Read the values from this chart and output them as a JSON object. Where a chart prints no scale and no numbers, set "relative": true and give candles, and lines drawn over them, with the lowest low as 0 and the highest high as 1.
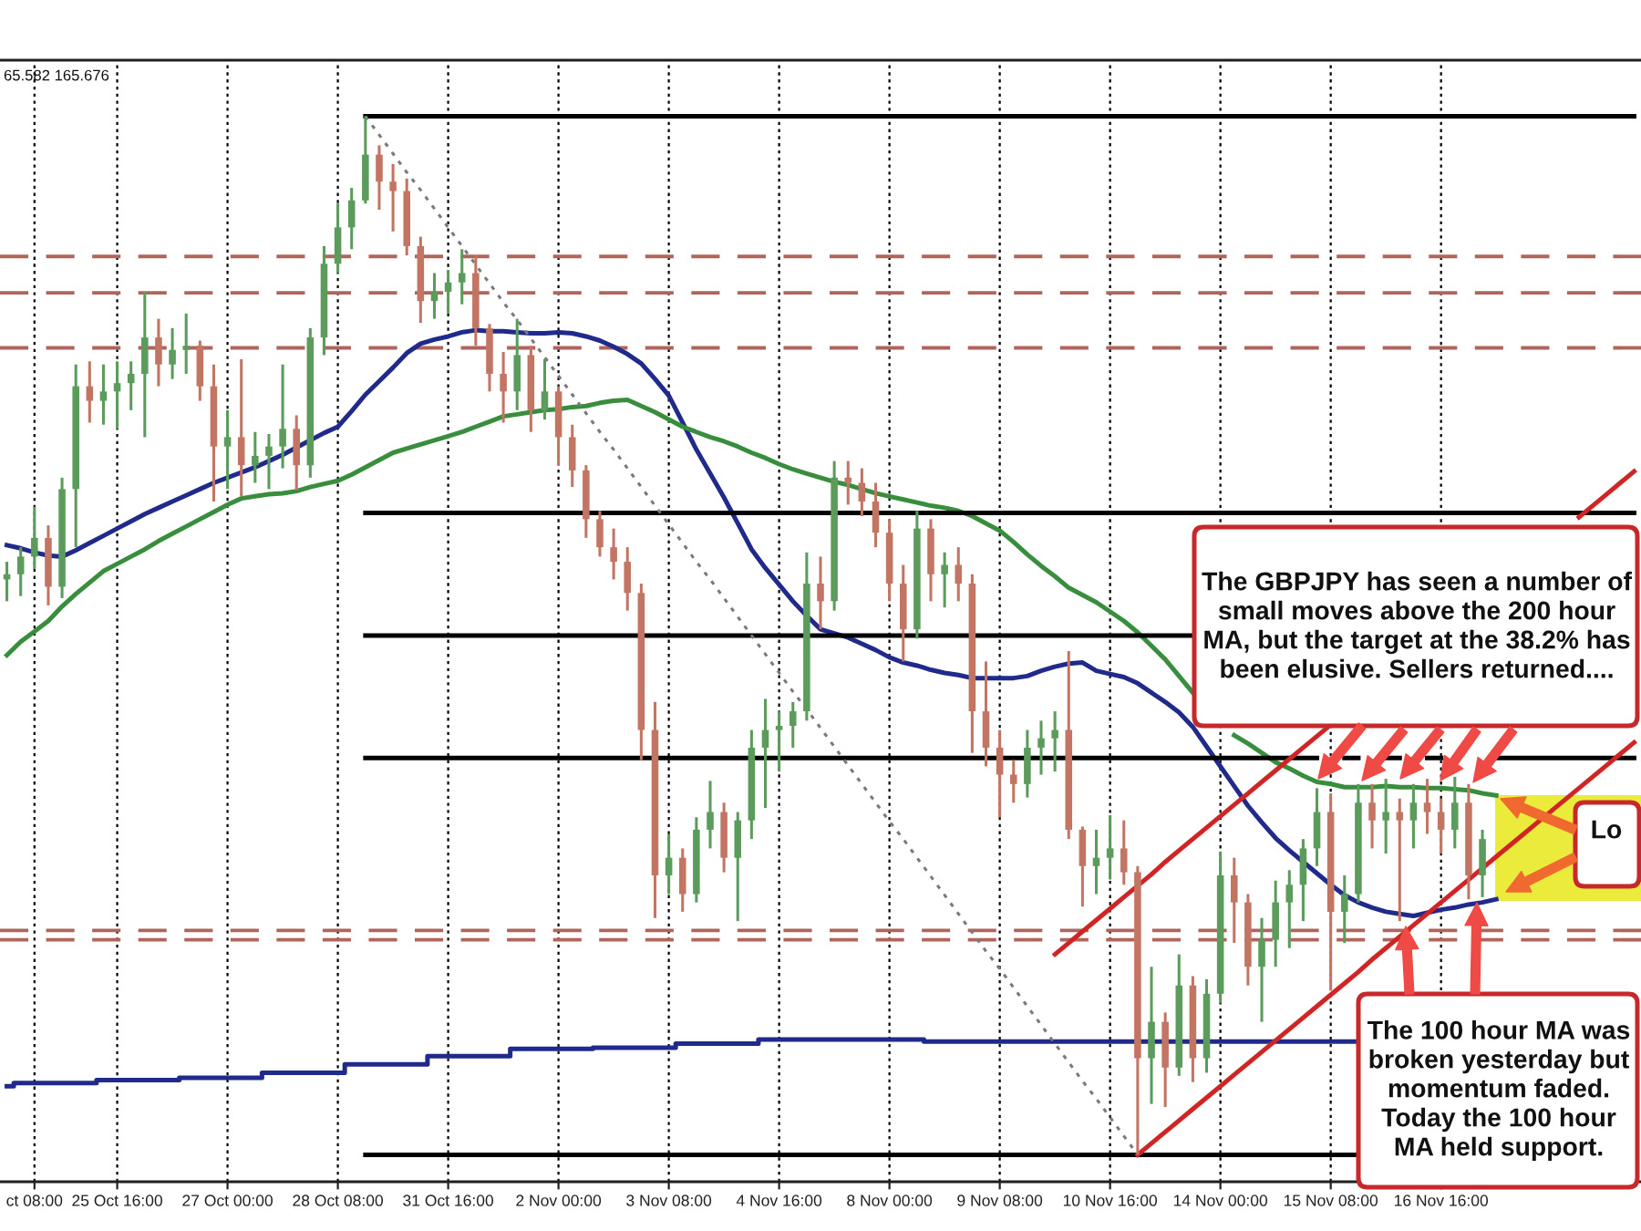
{
  "chart_data": {
    "type": "candlestick",
    "relative": true,
    "categories": [
      null,
      null,
      "ct 08:00",
      null,
      null,
      null,
      null,
      null,
      "25 Oct 16:00",
      null,
      null,
      null,
      null,
      null,
      null,
      null,
      "27 Oct 00:00",
      null,
      null,
      null,
      null,
      null,
      null,
      null,
      "28 Oct 08:00",
      null,
      null,
      null,
      null,
      null,
      null,
      null,
      "31 Oct 16:00",
      null,
      null,
      null,
      null,
      null,
      null,
      null,
      "2 Nov 00:00",
      null,
      null,
      null,
      null,
      null,
      null,
      null,
      "3 Nov 08:00",
      null,
      null,
      null,
      null,
      null,
      null,
      null,
      "4 Nov 16:00",
      null,
      null,
      null,
      null,
      null,
      null,
      null,
      "8 Nov 00:00",
      null,
      null,
      null,
      null,
      null,
      null,
      null,
      "9 Nov 08:00",
      null,
      null,
      null,
      null,
      null,
      null,
      null,
      "10 Nov 16:00",
      null,
      null,
      null,
      null,
      null,
      null,
      null,
      "14 Nov 00:00",
      null,
      null,
      null,
      null,
      null,
      null,
      null,
      "15 Nov 08:00",
      null,
      null,
      null,
      null,
      null,
      null,
      null,
      "16 Nov 16:00",
      null,
      null,
      null,
      null,
      null,
      null,
      null,
      null,
      null,
      null,
      null,
      null,
      null,
      null
    ],
    "ohlc": [
      [
        0.554,
        0.571,
        0.533,
        0.559
      ],
      [
        0.559,
        0.585,
        0.538,
        0.576
      ],
      [
        0.576,
        0.624,
        0.564,
        0.594
      ],
      [
        0.594,
        0.606,
        0.529,
        0.547
      ],
      [
        0.547,
        0.652,
        0.536,
        0.641
      ],
      [
        0.641,
        0.761,
        0.585,
        0.74
      ],
      [
        0.74,
        0.764,
        0.705,
        0.726
      ],
      [
        0.726,
        0.761,
        0.703,
        0.735
      ],
      [
        0.735,
        0.764,
        0.699,
        0.743
      ],
      [
        0.743,
        0.764,
        0.717,
        0.752
      ],
      [
        0.752,
        0.831,
        0.691,
        0.787
      ],
      [
        0.787,
        0.805,
        0.74,
        0.761
      ],
      [
        0.761,
        0.796,
        0.747,
        0.775
      ],
      [
        0.775,
        0.81,
        0.752,
        0.779
      ],
      [
        0.779,
        0.784,
        0.726,
        0.74
      ],
      [
        0.74,
        0.761,
        0.629,
        0.682
      ],
      [
        0.682,
        0.717,
        0.641,
        0.691
      ],
      [
        0.691,
        0.766,
        0.634,
        0.664
      ],
      [
        0.664,
        0.696,
        0.647,
        0.673
      ],
      [
        0.673,
        0.694,
        0.641,
        0.682
      ],
      [
        0.682,
        0.761,
        0.661,
        0.699
      ],
      [
        0.699,
        0.712,
        0.64,
        0.664
      ],
      [
        0.664,
        0.796,
        0.652,
        0.787
      ],
      [
        0.787,
        0.875,
        0.77,
        0.858
      ],
      [
        0.858,
        0.916,
        0.849,
        0.893
      ],
      [
        0.893,
        0.931,
        0.872,
        0.919
      ],
      [
        0.919,
        1.0,
        0.916,
        0.963
      ],
      [
        0.963,
        0.972,
        0.91,
        0.937
      ],
      [
        0.937,
        0.954,
        0.889,
        0.928
      ],
      [
        0.928,
        0.94,
        0.866,
        0.875
      ],
      [
        0.875,
        0.884,
        0.801,
        0.822
      ],
      [
        0.822,
        0.849,
        0.805,
        0.831
      ],
      [
        0.831,
        0.852,
        0.81,
        0.84
      ],
      [
        0.84,
        0.872,
        0.819,
        0.849
      ],
      [
        0.849,
        0.866,
        0.779,
        0.796
      ],
      [
        0.796,
        0.8,
        0.735,
        0.752
      ],
      [
        0.752,
        0.773,
        0.705,
        0.735
      ],
      [
        0.735,
        0.805,
        0.717,
        0.77
      ],
      [
        0.77,
        0.779,
        0.696,
        0.717
      ],
      [
        0.717,
        0.766,
        0.708,
        0.735
      ],
      [
        0.735,
        0.74,
        0.664,
        0.691
      ],
      [
        0.691,
        0.703,
        0.643,
        0.659
      ],
      [
        0.659,
        0.664,
        0.594,
        0.612
      ],
      [
        0.612,
        0.62,
        0.576,
        0.585
      ],
      [
        0.585,
        0.603,
        0.554,
        0.571
      ],
      [
        0.571,
        0.585,
        0.524,
        0.541
      ],
      [
        0.541,
        0.55,
        0.38,
        0.409
      ],
      [
        0.409,
        0.436,
        0.228,
        0.269
      ],
      [
        0.269,
        0.309,
        0.251,
        0.286
      ],
      [
        0.286,
        0.295,
        0.234,
        0.251
      ],
      [
        0.251,
        0.325,
        0.243,
        0.313
      ],
      [
        0.313,
        0.36,
        0.295,
        0.33
      ],
      [
        0.33,
        0.339,
        0.272,
        0.286
      ],
      [
        0.286,
        0.33,
        0.225,
        0.322
      ],
      [
        0.322,
        0.409,
        0.304,
        0.392
      ],
      [
        0.392,
        0.439,
        0.334,
        0.409
      ],
      [
        0.409,
        0.427,
        0.369,
        0.413
      ],
      [
        0.413,
        0.436,
        0.392,
        0.427
      ],
      [
        0.427,
        0.58,
        0.418,
        0.55
      ],
      [
        0.55,
        0.576,
        0.506,
        0.533
      ],
      [
        0.533,
        0.668,
        0.524,
        0.652
      ],
      [
        0.652,
        0.668,
        0.626,
        0.647
      ],
      [
        0.647,
        0.661,
        0.615,
        0.629
      ],
      [
        0.629,
        0.647,
        0.585,
        0.599
      ],
      [
        0.599,
        0.612,
        0.533,
        0.55
      ],
      [
        0.55,
        0.568,
        0.475,
        0.506
      ],
      [
        0.506,
        0.62,
        0.497,
        0.603
      ],
      [
        0.603,
        0.612,
        0.533,
        0.559
      ],
      [
        0.559,
        0.58,
        0.527,
        0.568
      ],
      [
        0.568,
        0.585,
        0.533,
        0.55
      ],
      [
        0.55,
        0.559,
        0.387,
        0.427
      ],
      [
        0.427,
        0.475,
        0.374,
        0.392
      ],
      [
        0.392,
        0.409,
        0.325,
        0.366
      ],
      [
        0.366,
        0.38,
        0.339,
        0.357
      ],
      [
        0.357,
        0.409,
        0.344,
        0.392
      ],
      [
        0.392,
        0.418,
        0.366,
        0.401
      ],
      [
        0.401,
        0.427,
        0.369,
        0.409
      ],
      [
        0.409,
        0.485,
        0.304,
        0.313
      ],
      [
        0.313,
        0.316,
        0.239,
        0.278
      ],
      [
        0.278,
        0.313,
        0.251,
        0.286
      ],
      [
        0.286,
        0.327,
        0.265,
        0.295
      ],
      [
        0.295,
        0.322,
        0.26,
        0.272
      ],
      [
        0.272,
        0.278,
        0.0,
        0.093
      ],
      [
        0.093,
        0.181,
        0.049,
        0.128
      ],
      [
        0.128,
        0.137,
        0.046,
        0.084
      ],
      [
        0.084,
        0.193,
        0.076,
        0.163
      ],
      [
        0.163,
        0.172,
        0.07,
        0.093
      ],
      [
        0.093,
        0.169,
        0.079,
        0.155
      ],
      [
        0.155,
        0.292,
        0.146,
        0.269
      ],
      [
        0.269,
        0.286,
        0.204,
        0.243
      ],
      [
        0.243,
        0.251,
        0.163,
        0.181
      ],
      [
        0.181,
        0.228,
        0.128,
        0.207
      ],
      [
        0.207,
        0.264,
        0.181,
        0.243
      ],
      [
        0.243,
        0.274,
        0.199,
        0.26
      ],
      [
        0.26,
        0.304,
        0.225,
        0.295
      ],
      [
        0.295,
        0.353,
        0.278,
        0.33
      ],
      [
        0.33,
        0.348,
        0.158,
        0.234
      ],
      [
        0.234,
        0.269,
        0.204,
        0.251
      ],
      [
        0.251,
        0.357,
        0.243,
        0.339
      ],
      [
        0.339,
        0.357,
        0.295,
        0.322
      ],
      [
        0.322,
        0.362,
        0.29,
        0.33
      ],
      [
        0.33,
        0.343,
        0.225,
        0.322
      ],
      [
        0.322,
        0.357,
        0.295,
        0.339
      ],
      [
        0.339,
        0.362,
        0.309,
        0.33
      ],
      [
        0.33,
        0.343,
        0.29,
        0.313
      ],
      [
        0.313,
        0.364,
        0.295,
        0.339
      ],
      [
        0.339,
        0.357,
        0.246,
        0.269
      ],
      [
        0.269,
        0.313,
        0.248,
        0.304
      ],
      null,
      null,
      null,
      null,
      null,
      null,
      null,
      null,
      null,
      null,
      null
    ],
    "colors": [
      "#5b9b5b",
      "#5b9b5b",
      "#5b9b5b",
      "#c37564",
      "#5b9b5b",
      "#5b9b5b",
      "#c37564",
      "#5b9b5b",
      "#5b9b5b",
      "#5b9b5b",
      "#5b9b5b",
      "#c37564",
      "#5b9b5b",
      "#5b9b5b",
      "#c37564",
      "#c37564",
      "#5b9b5b",
      "#c37564",
      "#5b9b5b",
      "#5b9b5b",
      "#5b9b5b",
      "#c37564",
      "#5b9b5b",
      "#5b9b5b",
      "#5b9b5b",
      "#5b9b5b",
      "#5b9b5b",
      "#c37564",
      "#c37564",
      "#c37564",
      "#c37564",
      "#5b9b5b",
      "#5b9b5b",
      "#5b9b5b",
      "#c37564",
      "#c37564",
      "#c37564",
      "#5b9b5b",
      "#c37564",
      "#5b9b5b",
      "#c37564",
      "#c37564",
      "#c37564",
      "#c37564",
      "#c37564",
      "#c37564",
      "#c37564",
      "#c37564",
      "#5b9b5b",
      "#c37564",
      "#5b9b5b",
      "#5b9b5b",
      "#c37564",
      "#5b9b5b",
      "#5b9b5b",
      "#5b9b5b",
      "#5b9b5b",
      "#5b9b5b",
      "#5b9b5b",
      "#c37564",
      "#5b9b5b",
      "#c37564",
      "#c37564",
      "#c37564",
      "#c37564",
      "#c37564",
      "#5b9b5b",
      "#c37564",
      "#5b9b5b",
      "#c37564",
      "#c37564",
      "#c37564",
      "#c37564",
      "#c37564",
      "#5b9b5b",
      "#5b9b5b",
      "#5b9b5b",
      "#c37564",
      "#c37564",
      "#5b9b5b",
      "#5b9b5b",
      "#c37564",
      "#c37564",
      "#5b9b5b",
      "#c37564",
      "#5b9b5b",
      "#c37564",
      "#5b9b5b",
      "#5b9b5b",
      "#c37564",
      "#c37564",
      "#5b9b5b",
      "#5b9b5b",
      "#5b9b5b",
      "#5b9b5b",
      "#5b9b5b",
      "#c37564",
      "#5b9b5b",
      "#5b9b5b",
      "#c37564",
      "#5b9b5b",
      "#c37564",
      "#5b9b5b",
      "#c37564",
      "#c37564",
      "#5b9b5b",
      "#c37564",
      "#5b9b5b",
      null,
      null,
      null,
      null,
      null,
      null,
      null,
      null,
      null,
      null,
      null
    ],
    "series": [
      {
        "type": "line",
        "color": "#1f2a8a",
        "values": [
          0.587,
          0.584,
          0.58,
          0.577,
          0.576,
          0.582,
          0.589,
          0.596,
          0.603,
          0.61,
          0.617,
          0.623,
          0.629,
          0.635,
          0.641,
          0.647,
          0.652,
          0.657,
          0.662,
          0.668,
          0.674,
          0.681,
          0.688,
          0.695,
          0.701,
          0.716,
          0.732,
          0.745,
          0.758,
          0.772,
          0.781,
          0.785,
          0.788,
          0.792,
          0.794,
          0.793,
          0.793,
          0.792,
          0.791,
          0.791,
          0.792,
          0.791,
          0.788,
          0.784,
          0.778,
          0.771,
          0.762,
          0.747,
          0.731,
          0.705,
          0.679,
          0.656,
          0.633,
          0.608,
          0.583,
          0.565,
          0.549,
          0.533,
          0.519,
          0.506,
          0.502,
          0.498,
          0.492,
          0.486,
          0.479,
          0.474,
          0.471,
          0.467,
          0.464,
          0.462,
          0.459,
          0.459,
          0.459,
          0.459,
          0.461,
          0.466,
          0.47,
          0.473,
          0.474,
          0.466,
          0.463,
          0.46,
          0.454,
          0.445,
          0.436,
          0.426,
          0.412,
          0.393,
          0.374,
          0.355,
          0.336,
          0.32,
          0.305,
          0.293,
          0.282,
          0.271,
          0.26,
          0.25,
          0.243,
          0.238,
          0.234,
          0.232,
          0.23,
          0.233,
          0.236,
          0.238,
          0.241,
          0.243,
          0.246,
          null,
          null,
          null,
          null,
          null,
          null,
          null,
          null,
          null,
          null
        ]
      },
      {
        "type": "line",
        "color": "#388e3c",
        "values": [
          0.481,
          0.494,
          0.504,
          0.514,
          0.528,
          0.54,
          0.551,
          0.562,
          0.569,
          0.576,
          0.583,
          0.591,
          0.598,
          0.605,
          0.612,
          0.619,
          0.626,
          0.632,
          0.634,
          0.636,
          0.637,
          0.639,
          0.643,
          0.646,
          0.649,
          0.655,
          0.662,
          0.669,
          0.676,
          0.68,
          0.684,
          0.688,
          0.692,
          0.696,
          0.701,
          0.706,
          0.711,
          0.713,
          0.715,
          0.717,
          0.718,
          0.72,
          0.721,
          0.724,
          0.726,
          0.727,
          0.721,
          0.715,
          0.708,
          0.701,
          0.696,
          0.691,
          0.687,
          0.682,
          0.676,
          0.671,
          0.665,
          0.66,
          0.656,
          0.652,
          0.648,
          0.645,
          0.641,
          0.637,
          0.634,
          0.631,
          0.628,
          0.625,
          0.623,
          0.62,
          0.615,
          0.608,
          0.601,
          0.59,
          0.578,
          0.567,
          0.557,
          0.546,
          0.539,
          0.532,
          0.523,
          0.514,
          0.503,
          0.49,
          0.477,
          0.461,
          0.445,
          null,
          null,
          0.404,
          0.396,
          0.387,
          0.378,
          0.372,
          0.365,
          0.359,
          0.357,
          0.354,
          0.354,
          0.354,
          0.355,
          0.354,
          0.354,
          0.353,
          0.353,
          0.352,
          0.351,
          0.348,
          0.346,
          null,
          null,
          null,
          null,
          null,
          null,
          null,
          null,
          null,
          null
        ]
      },
      {
        "type": "step",
        "color": "#1f2a8a",
        "values": [
          0.066,
          0.069,
          0.069,
          0.069,
          0.069,
          0.069,
          0.069,
          0.072,
          0.072,
          0.072,
          0.072,
          0.072,
          0.072,
          0.074,
          0.074,
          0.074,
          0.074,
          0.074,
          0.074,
          0.079,
          0.079,
          0.079,
          0.079,
          0.079,
          0.079,
          0.087,
          0.087,
          0.087,
          0.087,
          0.087,
          0.087,
          0.095,
          0.095,
          0.095,
          0.095,
          0.095,
          0.095,
          0.102,
          0.102,
          0.102,
          0.102,
          0.102,
          0.102,
          0.103,
          0.103,
          0.103,
          0.103,
          0.103,
          0.103,
          0.107,
          0.107,
          0.107,
          0.107,
          0.107,
          0.107,
          0.111,
          0.111,
          0.111,
          0.111,
          0.111,
          0.111,
          0.111,
          0.111,
          0.111,
          0.111,
          0.111,
          0.111,
          0.109,
          0.109,
          0.109,
          0.109,
          0.109,
          0.109,
          0.109,
          0.109,
          0.109,
          0.109,
          0.109,
          0.109,
          0.109,
          0.109,
          0.109,
          0.109,
          0.109,
          0.109,
          0.109,
          0.109,
          0.109,
          0.109,
          0.109,
          0.109,
          0.109,
          0.109,
          0.109,
          0.109,
          0.109,
          0.109,
          0.109,
          0.109,
          null,
          null,
          null,
          null,
          null,
          null,
          null,
          null,
          null,
          null,
          null,
          null,
          null,
          null,
          null,
          null,
          null,
          null,
          null,
          null
        ]
      },
      {
        "type": "line",
        "color": "#000000",
        "values": [
          null,
          null,
          null,
          null,
          null,
          null,
          null,
          null,
          null,
          null,
          null,
          null,
          null,
          null,
          null,
          null,
          null,
          null,
          null,
          null,
          null,
          null,
          null,
          null,
          null,
          null,
          1,
          1,
          1,
          1,
          1,
          1,
          1,
          1,
          1,
          1,
          1,
          1,
          1,
          1,
          1,
          1,
          1,
          1,
          1,
          1,
          1,
          1,
          1,
          1,
          1,
          1,
          1,
          1,
          1,
          1,
          1,
          1,
          1,
          1,
          1,
          1,
          1,
          1,
          1,
          1,
          1,
          1,
          1,
          1,
          1,
          1,
          1,
          1,
          1,
          1,
          1,
          1,
          1,
          1,
          1,
          1,
          1,
          1,
          1,
          1,
          1,
          1,
          1,
          1,
          1,
          1,
          1,
          1,
          1,
          1,
          1,
          1,
          1,
          1,
          1,
          1,
          1,
          1,
          1,
          1,
          1,
          1,
          1,
          1,
          1,
          1,
          1,
          1,
          1,
          1,
          1,
          1,
          1
        ]
      },
      {
        "type": "line",
        "color": "#000000",
        "values": [
          null,
          null,
          null,
          null,
          null,
          null,
          null,
          null,
          null,
          null,
          null,
          null,
          null,
          null,
          null,
          null,
          null,
          null,
          null,
          null,
          null,
          null,
          null,
          null,
          null,
          null,
          0.618,
          0.618,
          0.618,
          0.618,
          0.618,
          0.618,
          0.618,
          0.618,
          0.618,
          0.618,
          0.618,
          0.618,
          0.618,
          0.618,
          0.618,
          0.618,
          0.618,
          0.618,
          0.618,
          0.618,
          0.618,
          0.618,
          0.618,
          0.618,
          0.618,
          0.618,
          0.618,
          0.618,
          0.618,
          0.618,
          0.618,
          0.618,
          0.618,
          0.618,
          0.618,
          0.618,
          0.618,
          0.618,
          0.618,
          0.618,
          0.618,
          0.618,
          0.618,
          0.618,
          0.618,
          0.618,
          0.618,
          0.618,
          0.618,
          0.618,
          0.618,
          0.618,
          0.618,
          0.618,
          0.618,
          0.618,
          0.618,
          0.618,
          0.618,
          0.618,
          0.618,
          0.618,
          0.618,
          0.618,
          0.618,
          0.618,
          0.618,
          0.618,
          0.618,
          0.618,
          0.618,
          0.618,
          0.618,
          0.618,
          0.618,
          0.618,
          0.618,
          0.618,
          0.618,
          0.618,
          0.618,
          0.618,
          0.618,
          0.618,
          0.618,
          0.618,
          0.618,
          0.618,
          0.618,
          0.618,
          0.618,
          0.618,
          0.618
        ]
      },
      {
        "type": "line",
        "color": "#000000",
        "values": [
          null,
          null,
          null,
          null,
          null,
          null,
          null,
          null,
          null,
          null,
          null,
          null,
          null,
          null,
          null,
          null,
          null,
          null,
          null,
          null,
          null,
          null,
          null,
          null,
          null,
          null,
          0.5,
          0.5,
          0.5,
          0.5,
          0.5,
          0.5,
          0.5,
          0.5,
          0.5,
          0.5,
          0.5,
          0.5,
          0.5,
          0.5,
          0.5,
          0.5,
          0.5,
          0.5,
          0.5,
          0.5,
          0.5,
          0.5,
          0.5,
          0.5,
          0.5,
          0.5,
          0.5,
          0.5,
          0.5,
          0.5,
          0.5,
          0.5,
          0.5,
          0.5,
          0.5,
          0.5,
          0.5,
          0.5,
          0.5,
          0.5,
          0.5,
          0.5,
          0.5,
          0.5,
          0.5,
          0.5,
          0.5,
          0.5,
          0.5,
          0.5,
          0.5,
          0.5,
          0.5,
          0.5,
          0.5,
          0.5,
          0.5,
          0.5,
          0.5,
          0.5,
          0.5,
          null,
          null,
          null,
          null,
          null,
          null,
          null,
          null,
          null,
          null,
          null,
          null,
          null,
          null,
          null,
          null,
          null,
          null,
          null,
          null,
          null,
          null,
          null,
          null,
          null,
          null,
          null,
          null,
          null,
          null,
          null,
          null
        ]
      },
      {
        "type": "line",
        "color": "#000000",
        "values": [
          null,
          null,
          null,
          null,
          null,
          null,
          null,
          null,
          null,
          null,
          null,
          null,
          null,
          null,
          null,
          null,
          null,
          null,
          null,
          null,
          null,
          null,
          null,
          null,
          null,
          null,
          0.382,
          0.382,
          0.382,
          0.382,
          0.382,
          0.382,
          0.382,
          0.382,
          0.382,
          0.382,
          0.382,
          0.382,
          0.382,
          0.382,
          0.382,
          0.382,
          0.382,
          0.382,
          0.382,
          0.382,
          0.382,
          0.382,
          0.382,
          0.382,
          0.382,
          0.382,
          0.382,
          0.382,
          0.382,
          0.382,
          0.382,
          0.382,
          0.382,
          0.382,
          0.382,
          0.382,
          0.382,
          0.382,
          0.382,
          0.382,
          0.382,
          0.382,
          0.382,
          0.382,
          0.382,
          0.382,
          0.382,
          0.382,
          0.382,
          0.382,
          0.382,
          0.382,
          0.382,
          0.382,
          0.382,
          0.382,
          0.382,
          0.382,
          0.382,
          0.382,
          0.382,
          0.382,
          0.382,
          0.382,
          0.382,
          0.382,
          0.382,
          0.382,
          0.382,
          0.382,
          null,
          0.382,
          0.382,
          null,
          0.382,
          0.382,
          null,
          0.382,
          0.382,
          null,
          null,
          null,
          0.382,
          0.382,
          0.382,
          0.382,
          0.382,
          0.382,
          0.382,
          0.382,
          0.382,
          0.382,
          0.382
        ]
      },
      {
        "type": "line",
        "color": "#000000",
        "values": [
          null,
          null,
          null,
          null,
          null,
          null,
          null,
          null,
          null,
          null,
          null,
          null,
          null,
          null,
          null,
          null,
          null,
          null,
          null,
          null,
          null,
          null,
          null,
          null,
          null,
          null,
          0,
          0,
          0,
          0,
          0,
          0,
          0,
          0,
          0,
          0,
          0,
          0,
          0,
          0,
          0,
          0,
          0,
          0,
          0,
          0,
          0,
          0,
          0,
          0,
          0,
          0,
          0,
          0,
          0,
          0,
          0,
          0,
          0,
          0,
          0,
          0,
          0,
          0,
          0,
          0,
          0,
          0,
          0,
          0,
          0,
          0,
          0,
          0,
          0,
          0,
          0,
          0,
          0,
          0,
          0,
          0,
          0,
          0,
          0,
          0,
          0,
          0,
          0,
          0,
          0,
          0,
          0,
          0,
          0,
          0,
          0,
          0,
          0,
          null,
          null,
          null,
          null,
          null,
          null,
          null,
          null,
          null,
          null,
          null,
          null,
          null,
          null,
          null,
          null,
          null,
          null,
          null,
          null
        ]
      },
      {
        "type": "line",
        "color": "#7a7a7a",
        "line_style": "dotted",
        "values": [
          null,
          null,
          null,
          null,
          null,
          null,
          null,
          null,
          null,
          null,
          null,
          null,
          null,
          null,
          null,
          null,
          null,
          null,
          null,
          null,
          null,
          null,
          null,
          null,
          null,
          null,
          1.0,
          0.982,
          0.964,
          0.946,
          0.929,
          0.911,
          0.893,
          0.875,
          0.857,
          0.839,
          0.821,
          0.804,
          0.786,
          0.768,
          0.75,
          0.732,
          0.714,
          0.696,
          0.679,
          0.661,
          0.643,
          0.625,
          0.607,
          0.589,
          0.571,
          0.554,
          0.536,
          0.518,
          0.5,
          0.482,
          0.464,
          0.446,
          0.429,
          0.411,
          0.393,
          0.375,
          0.357,
          0.339,
          0.321,
          0.304,
          0.286,
          0.268,
          0.25,
          0.232,
          0.214,
          0.196,
          0.179,
          0.161,
          0.143,
          0.125,
          0.107,
          0.089,
          0.071,
          0.054,
          0.036,
          0.018,
          0.0,
          null,
          null,
          null,
          null,
          null,
          null,
          null,
          null,
          null,
          null,
          null,
          null,
          null,
          null,
          null,
          null,
          null,
          null,
          null,
          null,
          null,
          null,
          null,
          null,
          null,
          null,
          null,
          null,
          null,
          null,
          null,
          null,
          null,
          null,
          null,
          null
        ]
      },
      {
        "type": "line",
        "color": "#d02525",
        "values": [
          null,
          null,
          null,
          null,
          null,
          null,
          null,
          null,
          null,
          null,
          null,
          null,
          null,
          null,
          null,
          null,
          null,
          null,
          null,
          null,
          null,
          null,
          null,
          null,
          null,
          null,
          null,
          null,
          null,
          null,
          null,
          null,
          null,
          null,
          null,
          null,
          null,
          null,
          null,
          null,
          null,
          null,
          null,
          null,
          null,
          null,
          null,
          null,
          null,
          null,
          null,
          null,
          null,
          null,
          null,
          null,
          null,
          null,
          null,
          null,
          null,
          null,
          null,
          null,
          null,
          null,
          null,
          null,
          null,
          null,
          null,
          null,
          null,
          null,
          null,
          null,
          null,
          null,
          null,
          null,
          null,
          null,
          0.0,
          0.011,
          0.022,
          0.033,
          0.044,
          0.055,
          0.066,
          0.077,
          0.088,
          0.099,
          0.11,
          0.121,
          0.132,
          0.143,
          0.154,
          0.165,
          0.176,
          0.188,
          0.199,
          0.21,
          0.221,
          0.232,
          0.243,
          0.254,
          0.265,
          0.276,
          0.287,
          0.298,
          0.309,
          0.32,
          0.331,
          0.342,
          0.353,
          0.364,
          0.375,
          0.386,
          0.397
        ]
      },
      {
        "type": "line",
        "color": "#d02525",
        "values": [
          null,
          null,
          null,
          null,
          null,
          null,
          null,
          null,
          null,
          null,
          null,
          null,
          null,
          null,
          null,
          null,
          null,
          null,
          null,
          null,
          null,
          null,
          null,
          null,
          null,
          null,
          null,
          null,
          null,
          null,
          null,
          null,
          null,
          null,
          null,
          null,
          null,
          null,
          null,
          null,
          null,
          null,
          null,
          null,
          null,
          null,
          null,
          null,
          null,
          null,
          null,
          null,
          null,
          null,
          null,
          null,
          null,
          null,
          null,
          null,
          null,
          null,
          null,
          null,
          null,
          null,
          null,
          null,
          null,
          null,
          null,
          null,
          null,
          null,
          null,
          null,
          0.193,
          0.204,
          0.215,
          0.226,
          0.237,
          0.248,
          0.259,
          0.27,
          0.282,
          0.293,
          0.304,
          0.315,
          0.326,
          0.337,
          0.348,
          0.359,
          0.37,
          0.381,
          0.392,
          0.403,
          0.414,
          null,
          null,
          null,
          null,
          null,
          null,
          null,
          null,
          null,
          null,
          null,
          null,
          null,
          null,
          null,
          null,
          null,
          0.614,
          0.625,
          0.636,
          0.647,
          0.658
        ]
      }
    ],
    "ref_lines": [
      {
        "axis": "y",
        "value": 0.865,
        "color": "#b0655c",
        "line_style": "dashed"
      },
      {
        "axis": "y",
        "value": 0.83,
        "color": "#b0655c",
        "line_style": "dashed"
      },
      {
        "axis": "y",
        "value": 0.777,
        "color": "#b0655c",
        "line_style": "dashed"
      },
      {
        "axis": "y",
        "value": 0.216,
        "color": "#b0655c",
        "line_style": "dashed"
      },
      {
        "axis": "y",
        "value": 0.207,
        "color": "#b0655c",
        "line_style": "dashed"
      }
    ],
    "grid": "x",
    "tick_labels": "x",
    "annotations": [
      "65.582 165.676",
      "The GBPJPY has seen a number of\nsmall moves above the 200 hour\nMA, but the target at the 38.2% has\nbeen elusive. Sellers returned....",
      "Lo",
      "The 100 hour MA was\nbroken yesterday but\nmomentum faded.\nToday the 100 hour\nMA held support."
    ]
  }
}
